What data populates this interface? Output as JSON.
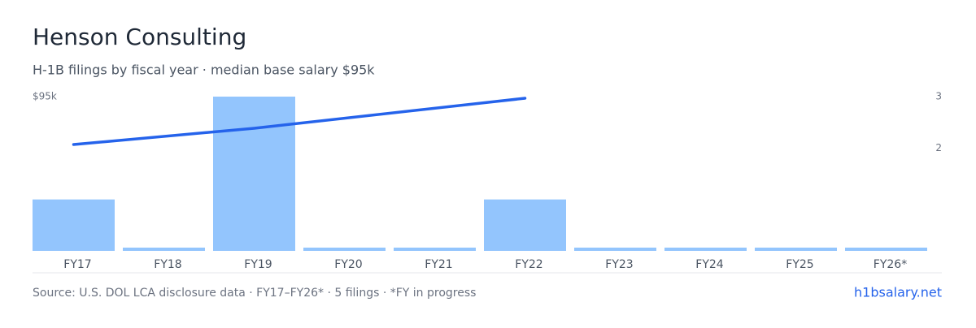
{
  "chart_data": {
    "type": "bar",
    "title": "Henson Consulting",
    "subtitle": "H-1B filings by fiscal year · median base salary $95k",
    "categories": [
      "FY17",
      "FY18",
      "FY19",
      "FY20",
      "FY21",
      "FY22",
      "FY23",
      "FY24",
      "FY25",
      "FY26*"
    ],
    "series": [
      {
        "type": "bar",
        "axis": "y2",
        "color": "#93c5fd",
        "values": [
          1,
          0,
          3,
          0,
          0,
          1,
          0,
          0,
          0,
          0
        ]
      },
      {
        "type": "line",
        "axis": "y",
        "color": "#2563eb",
        "values": [
          65500,
          null,
          75500,
          null,
          null,
          94000,
          null,
          null,
          null,
          null
        ]
      }
    ],
    "ylim": [
      0,
      95000
    ],
    "yticks": [
      {
        "value": 95000,
        "label": "$95k"
      }
    ],
    "y2lim": [
      0,
      3
    ],
    "y2ticks": [
      2,
      3
    ],
    "footer": {
      "source": "Source: U.S. DOL LCA disclosure data · FY17–FY26* · 5 filings · *FY in progress",
      "link": "h1bsalary.net"
    }
  }
}
